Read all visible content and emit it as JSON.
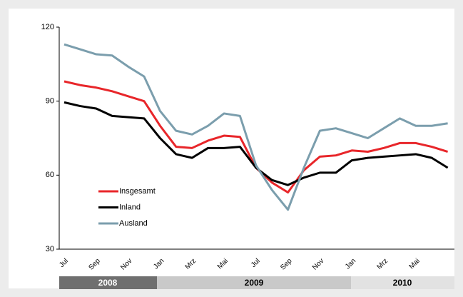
{
  "chart_data": {
    "type": "line",
    "categories": [
      "Jul",
      null,
      "Sep",
      null,
      "Nov",
      null,
      "Jan",
      null,
      "Mrz",
      null,
      "Mai",
      null,
      "Jul",
      null,
      "Sep",
      null,
      "Nov",
      null,
      "Jan",
      null,
      "Mrz",
      null,
      "Mai",
      null,
      null
    ],
    "series": [
      {
        "name": "Insgesamt",
        "color": "#e8262a",
        "values": [
          98,
          96.5,
          95.5,
          94,
          92,
          90,
          80,
          71.5,
          71,
          74,
          76,
          75.5,
          63,
          57,
          53,
          62,
          67.5,
          68,
          70,
          69.5,
          71,
          73,
          73,
          71.5,
          69.5
        ]
      },
      {
        "name": "Inland",
        "color": "#000000",
        "values": [
          89.5,
          88,
          87,
          84,
          83.5,
          83,
          75,
          68.5,
          67,
          71,
          71,
          71.5,
          63,
          58,
          56,
          59,
          61,
          61,
          66,
          67,
          67.5,
          68,
          68.5,
          67,
          63
        ]
      },
      {
        "name": "Ausland",
        "color": "#7b9ead",
        "values": [
          113,
          111,
          109,
          108.5,
          104,
          100,
          86,
          78,
          76.5,
          80,
          85,
          84,
          64,
          54,
          46,
          63,
          78,
          79,
          77,
          75,
          79,
          83,
          80,
          80,
          81
        ]
      }
    ],
    "ylim": [
      30,
      120
    ],
    "yticks": [
      30,
      60,
      90,
      120
    ],
    "year_groups": [
      "2008",
      "2009",
      "2010"
    ],
    "legend": "lower-left"
  }
}
